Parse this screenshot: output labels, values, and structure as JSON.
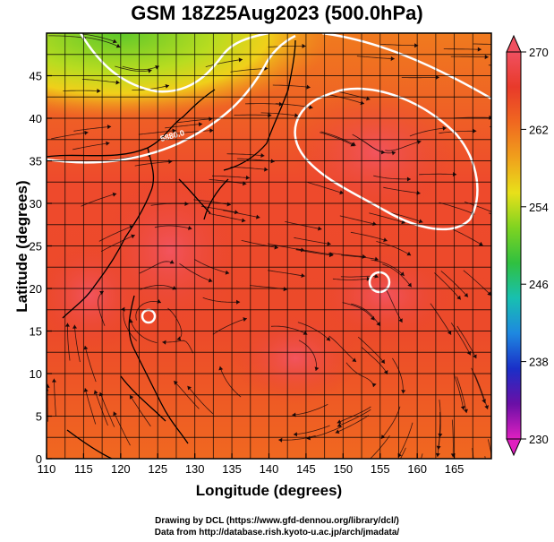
{
  "title": "GSM 18Z25Aug2023 (500.0hPa)",
  "xlabel": "Longitude (degrees)",
  "ylabel": "Latitude  (degrees)",
  "credits": [
    "Drawing by DCL (https://www.gfd-dennou.org/library/dcl/)",
    "Data from http://database.rish.kyoto-u.ac.jp/arch/jmadata/"
  ],
  "chart_data": {
    "type": "heatmap",
    "xticks": [
      110,
      115,
      120,
      125,
      130,
      135,
      140,
      145,
      150,
      155,
      160,
      165
    ],
    "yticks": [
      0,
      5,
      10,
      15,
      20,
      25,
      30,
      35,
      40,
      45
    ],
    "xlim": [
      110,
      170
    ],
    "ylim": [
      0,
      50
    ],
    "colorbar": {
      "ticks": [
        270,
        262,
        254,
        246,
        238,
        230
      ],
      "range": [
        230,
        270
      ],
      "stops": [
        "#e020c0",
        "#6a0fa6",
        "#1a2fc8",
        "#1e88e0",
        "#18c0b0",
        "#30c040",
        "#7ed321",
        "#e8e01a",
        "#f0a01c",
        "#f06820",
        "#e83a2a",
        "#f05060"
      ]
    },
    "contour_label": "5880.0",
    "icons": {
      "colorbar_upper_arrow": "triangle-up-icon",
      "colorbar_lower_arrow": "triangle-down-icon"
    }
  }
}
